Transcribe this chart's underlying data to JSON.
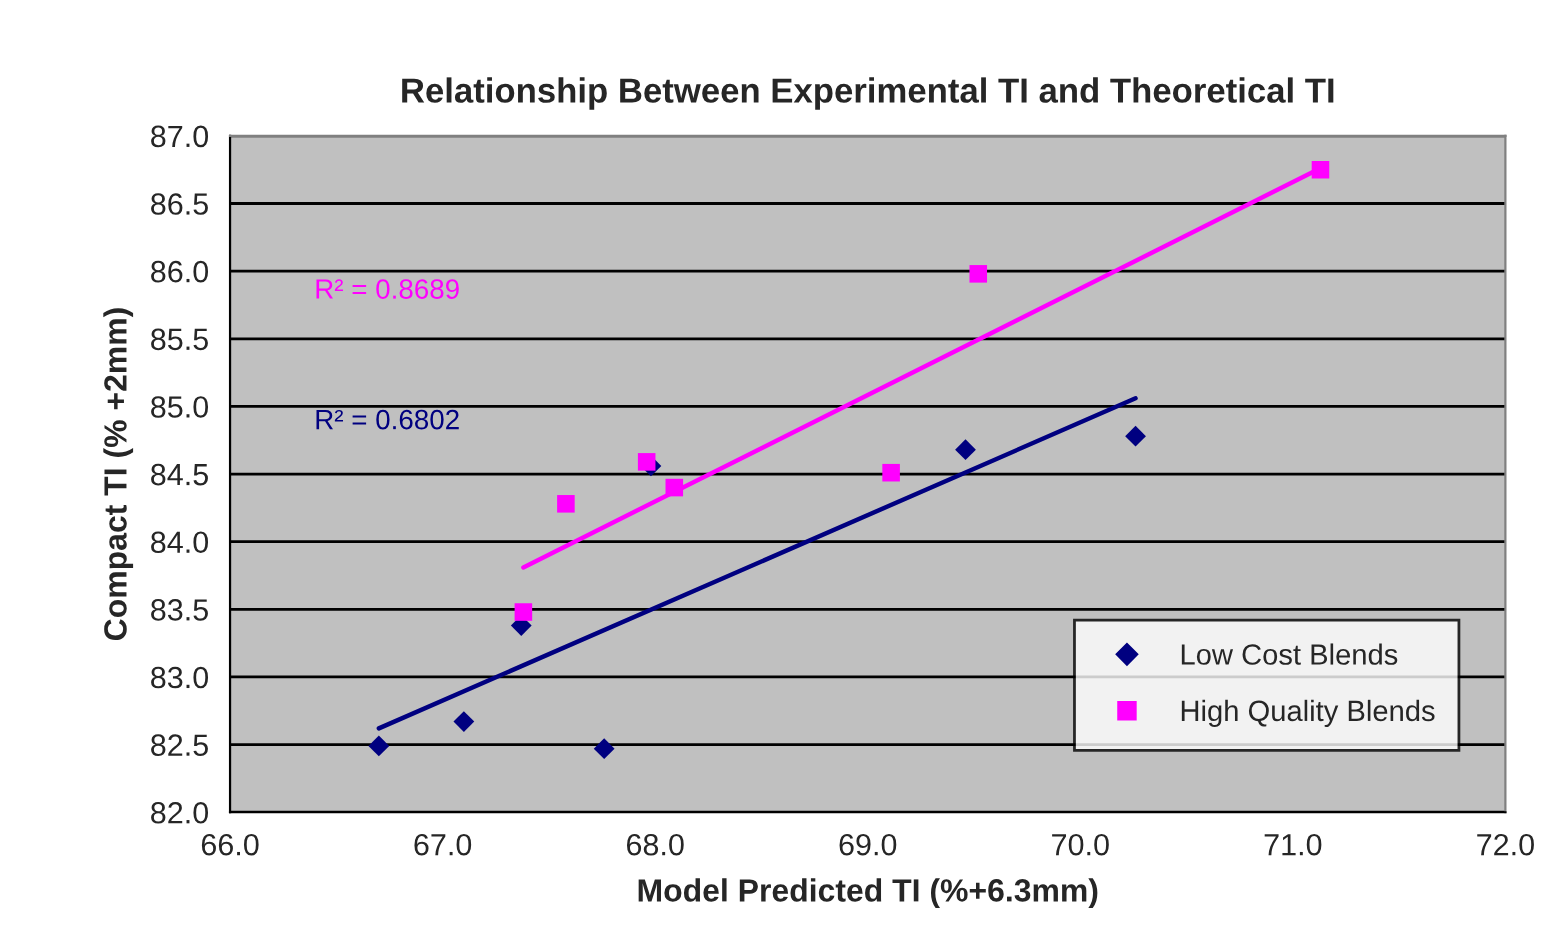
{
  "chart_data": {
    "type": "scatter",
    "title": "Relationship Between Experimental TI and Theoretical TI",
    "xlabel": "Model Predicted TI (%+6.3mm)",
    "ylabel": "Compact TI (% +2mm)",
    "series": [
      {
        "name": "Low Cost Blends",
        "color": "#000080",
        "marker": "diamond",
        "x": [
          66.7,
          67.1,
          67.37,
          67.76,
          67.98,
          69.46,
          70.26
        ],
        "values": [
          82.49,
          82.67,
          83.38,
          82.47,
          84.56,
          84.68,
          84.78
        ]
      },
      {
        "name": "High Quality Blends",
        "color": "#ff00ff",
        "marker": "square",
        "x": [
          67.38,
          67.58,
          67.96,
          68.09,
          69.11,
          69.52,
          71.13
        ],
        "values": [
          83.48,
          84.28,
          84.59,
          84.4,
          84.51,
          85.98,
          86.75
        ]
      },
      {
        "type": "line",
        "color": "#000080",
        "marker": "none",
        "x": [
          66.7,
          70.26
        ],
        "values": [
          82.62,
          85.06
        ]
      },
      {
        "type": "line",
        "color": "#ff00ff",
        "marker": "none",
        "x": [
          67.38,
          71.13
        ],
        "values": [
          83.81,
          86.76
        ]
      }
    ],
    "annotations": [
      "R² = 0.8689",
      "R² = 0.6802"
    ],
    "xlim": [
      66.0,
      72.0
    ],
    "xticks": [
      {
        "value": 66,
        "label": "66.0"
      },
      {
        "value": 67,
        "label": "67.0"
      },
      {
        "value": 68,
        "label": "68.0"
      },
      {
        "value": 69,
        "label": "69.0"
      },
      {
        "value": 70,
        "label": "70.0"
      },
      {
        "value": 71,
        "label": "71.0"
      },
      {
        "value": 72,
        "label": "72.0"
      }
    ],
    "ylim": [
      82.0,
      87.0
    ],
    "yticks": [
      {
        "value": 82,
        "label": "82.0"
      },
      {
        "value": 82.5,
        "label": "82.5"
      },
      {
        "value": 83,
        "label": "83.0"
      },
      {
        "value": 83.5,
        "label": "83.5"
      },
      {
        "value": 84,
        "label": "84.0"
      },
      {
        "value": 84.5,
        "label": "84.5"
      },
      {
        "value": 85,
        "label": "85.0"
      },
      {
        "value": 85.5,
        "label": "85.5"
      },
      {
        "value": 86,
        "label": "86.0"
      },
      {
        "value": 86.5,
        "label": "86.5"
      },
      {
        "value": 87,
        "label": "87.0"
      }
    ],
    "grid": "y",
    "legend": "bottom right",
    "line_style": "solid"
  }
}
